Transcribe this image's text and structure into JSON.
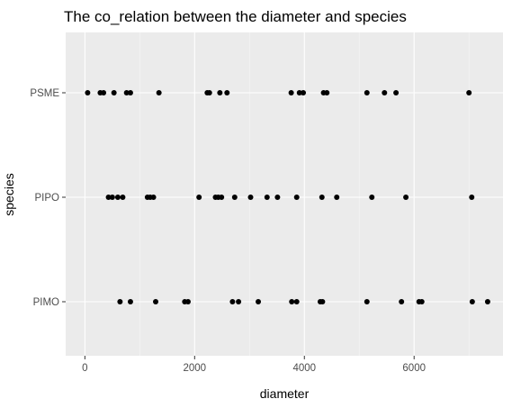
{
  "chart_data": {
    "type": "scatter",
    "title": "The co_relation between the diameter and species",
    "xlabel": "diameter",
    "ylabel": "species",
    "xlim": [
      -350,
      7620
    ],
    "x_ticks": [
      0,
      2000,
      4000,
      6000
    ],
    "x_tick_labels": [
      "0",
      "2000",
      "4000",
      "6000"
    ],
    "categories": [
      "PIMO",
      "PIPO",
      "PSME"
    ],
    "grid": true,
    "panel_background": "#ebebeb",
    "point_color": "#000000",
    "series": [
      {
        "category": "PSME",
        "x": [
          50,
          280,
          340,
          530,
          760,
          830,
          1350,
          2230,
          2270,
          2460,
          2590,
          3760,
          3910,
          3980,
          4350,
          4410,
          5140,
          5460,
          5670,
          7000
        ]
      },
      {
        "category": "PIPO",
        "x": [
          430,
          500,
          600,
          690,
          1140,
          1190,
          1250,
          2080,
          2380,
          2430,
          2490,
          2730,
          3020,
          3320,
          3510,
          3860,
          4320,
          4590,
          5230,
          5850,
          7050
        ]
      },
      {
        "category": "PIMO",
        "x": [
          640,
          830,
          1290,
          1820,
          1880,
          2690,
          2800,
          3160,
          3770,
          3860,
          4290,
          4330,
          5140,
          5770,
          6090,
          6140,
          7060,
          7340
        ]
      }
    ]
  }
}
